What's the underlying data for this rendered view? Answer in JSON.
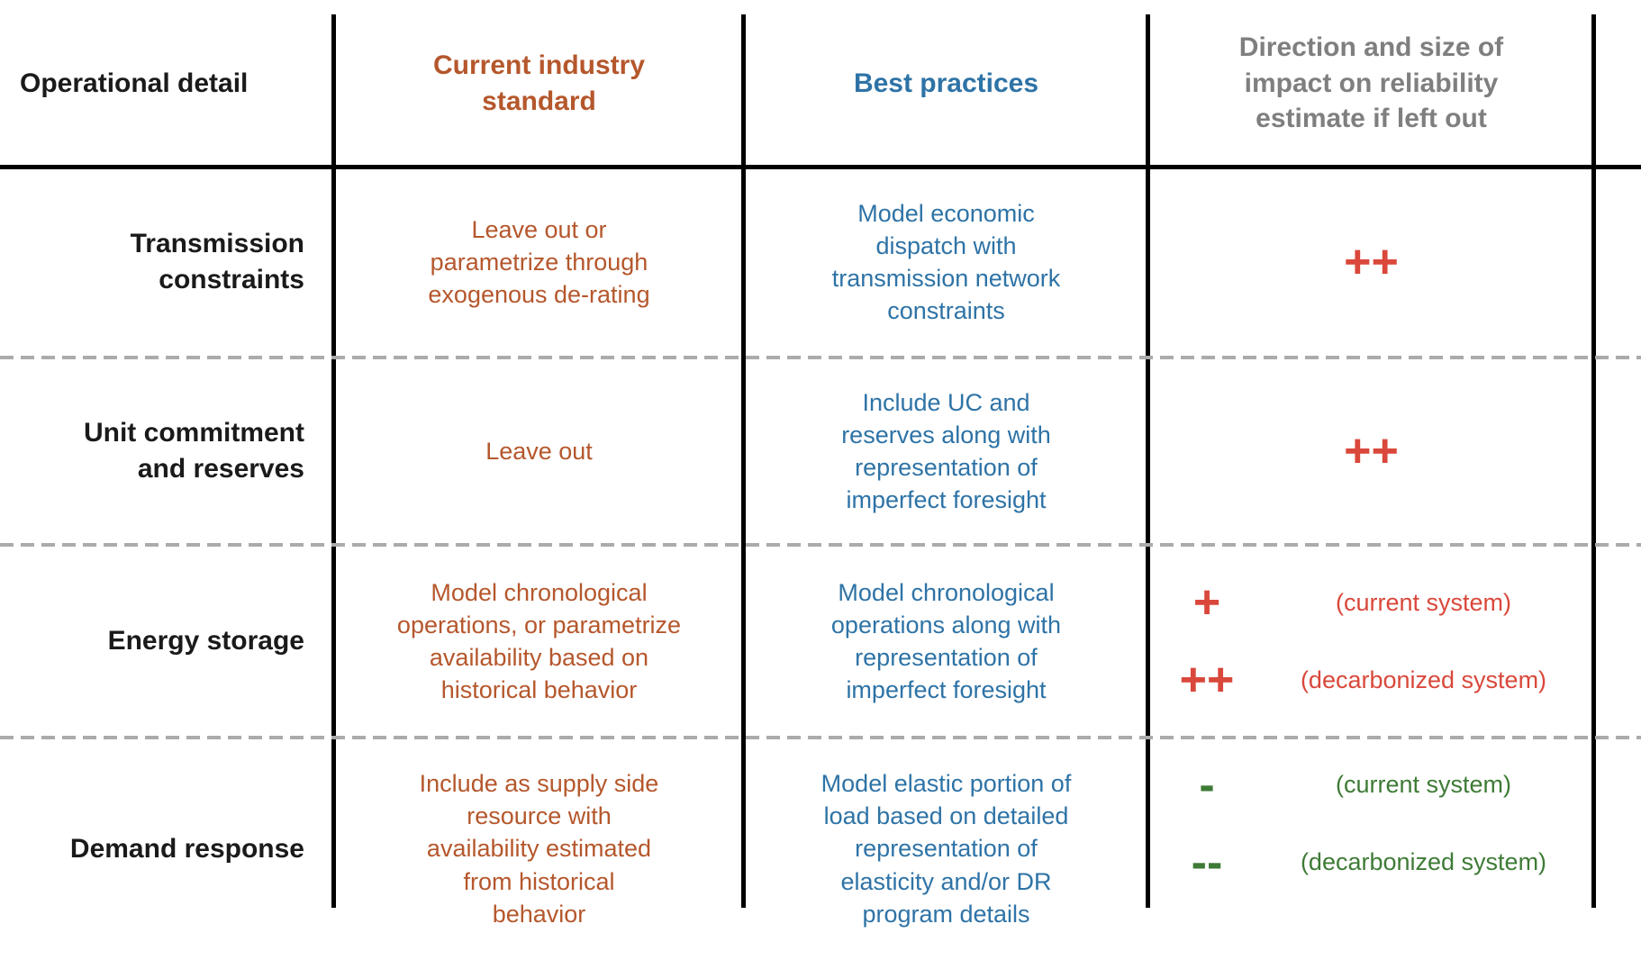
{
  "colors": {
    "black": "#1A1A1A",
    "orange": "#B5572C",
    "blue": "#2E73A6",
    "gray": "#7F7F7F",
    "red": "#D9483B",
    "green": "#3E7B36",
    "line_black": "#000000",
    "line_dashed_gray": "#ABABAB"
  },
  "header": {
    "operational_detail": "Operational detail",
    "current_standard": "Current industry\nstandard",
    "best_practices": "Best practices",
    "impact": "Direction and size of\nimpact on reliability\nestimate if left out"
  },
  "rows": [
    {
      "operational_detail": "Transmission\nconstraints",
      "current_standard": "Leave out or\nparametrize through\nexogenous de-rating",
      "best_practices": "Model economic\ndispatch with\ntransmission network\nconstraints",
      "impact": {
        "symbol": "++"
      }
    },
    {
      "operational_detail": "Unit commitment\nand reserves",
      "current_standard": "Leave out",
      "best_practices": "Include UC and\nreserves along with\nrepresentation of\nimperfect foresight",
      "impact": {
        "symbol": "++"
      }
    },
    {
      "operational_detail": "Energy storage",
      "current_standard": "Model chronological\noperations, or parametrize\navailability based on\nhistorical behavior",
      "best_practices": "Model chronological\noperations along with\nrepresentation of\nimperfect foresight",
      "impact": {
        "entries": [
          {
            "symbol": "+",
            "label": "(current system)"
          },
          {
            "symbol": "++",
            "label": "(decarbonized system)"
          }
        ]
      }
    },
    {
      "operational_detail": "Demand response",
      "current_standard": "Include as supply side\nresource with\navailability estimated\nfrom historical\nbehavior",
      "best_practices": "Model elastic portion of\nload based on detailed\nrepresentation of\nelasticity and/or DR\nprogram details",
      "impact": {
        "entries": [
          {
            "symbol": "-",
            "label": "(current system)"
          },
          {
            "symbol": "--",
            "label": "(decarbonized system)"
          }
        ]
      }
    }
  ]
}
